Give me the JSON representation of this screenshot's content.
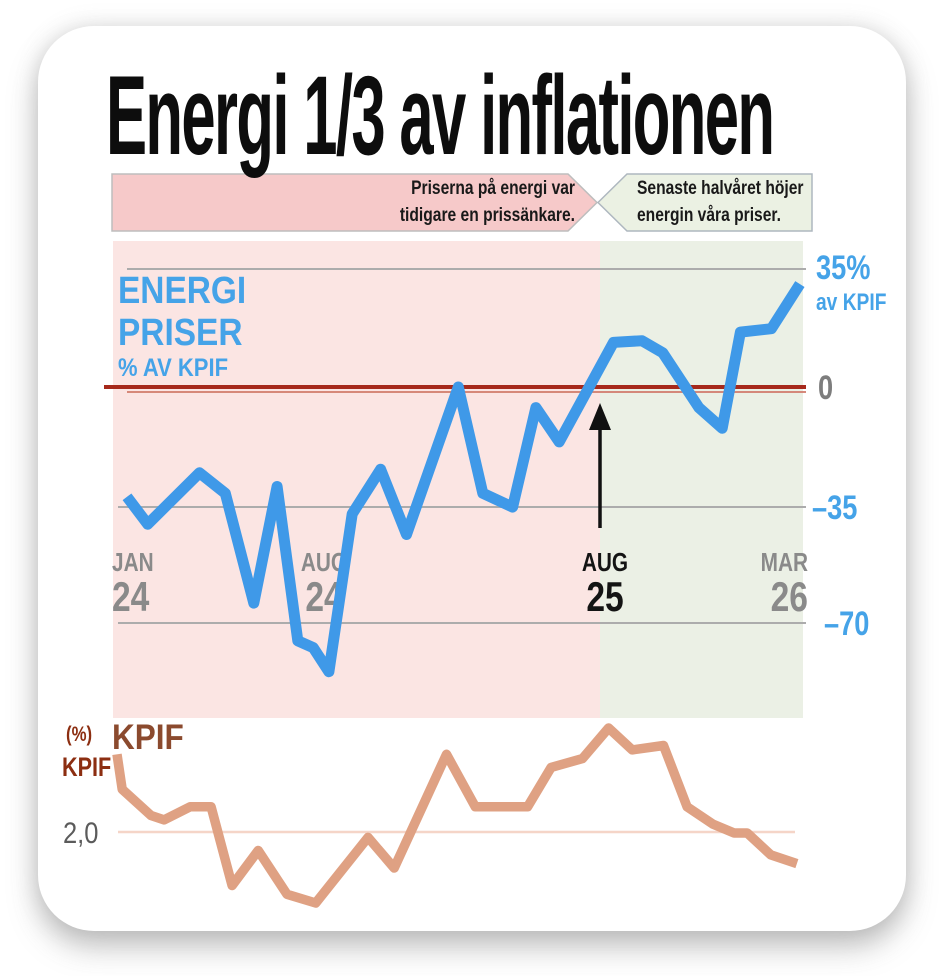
{
  "page": {
    "title": "Energi 1/3 av inflationen"
  },
  "callouts": {
    "past": {
      "line1": "Priserna på energi var",
      "line2": "tidigare en prissänkare.",
      "fill": "#f6c9c9"
    },
    "recent": {
      "line1": "Senaste halvåret höjer",
      "line2": "energin våra priser.",
      "fill": "#ebf1e3"
    }
  },
  "energy_chart": {
    "label": {
      "line1": "ENERGI",
      "line2": "PRISER",
      "line3": "% AV KPIF"
    },
    "y_axis": {
      "top": "35%",
      "top_sub": "av KPIF",
      "zero": "0",
      "m35": "–35",
      "m70": "–70"
    },
    "x_axis": [
      {
        "month": "JAN",
        "year": "24"
      },
      {
        "month": "AUG",
        "year": "24"
      },
      {
        "month": "AUG",
        "year": "25"
      },
      {
        "month": "MAR",
        "year": "26"
      }
    ]
  },
  "kpif_chart": {
    "unit": "(%)",
    "unit_sub": "KPIF",
    "title": "KPIF",
    "tick": "2,0"
  },
  "colors": {
    "blue_line": "#3f99e8",
    "blue_text": "#45a3e8",
    "pink_bg": "#fbe5e3",
    "green_bg": "#ebf0e5",
    "zero_line": "#a6291b",
    "zero_line_light": "#d07a6a",
    "grid": "#acacac",
    "orange_line": "#dfa183",
    "kpif_grid": "#f5d5c8",
    "rust_text": "#8c2e11",
    "sienna_text": "#8b4a2e",
    "gray_label": "#8a8a8a",
    "highlight_label": "#141414"
  },
  "chart_data": [
    {
      "type": "line",
      "title": "Energipriser % av KPIF",
      "x_unit": "months from Jan 2024",
      "x_ticks": [
        "JAN 24",
        "AUG 24",
        "AUG 25",
        "MAR 26"
      ],
      "ylabel": "% av KPIF",
      "ylim": [
        -90,
        40
      ],
      "gridlines": [
        35,
        0,
        -35,
        -70
      ],
      "zero_highlighted": true,
      "regions": [
        {
          "from_month": 0,
          "to_month": 18.3,
          "note": "Priserna på energi var tidigare en prissänkare."
        },
        {
          "from_month": 18.3,
          "to_month": 26.3,
          "note": "Senaste halvåret höjer energin våra priser."
        }
      ],
      "annotation_arrow_at": "AUG 25",
      "points": [
        [
          0,
          -32
        ],
        [
          0.8,
          -40
        ],
        [
          2.8,
          -25
        ],
        [
          3.8,
          -31
        ],
        [
          4.9,
          -63
        ],
        [
          5.8,
          -29
        ],
        [
          6.6,
          -74
        ],
        [
          7.2,
          -76
        ],
        [
          7.8,
          -83
        ],
        [
          8.7,
          -37
        ],
        [
          9.8,
          -24
        ],
        [
          10.8,
          -43
        ],
        [
          12.8,
          0
        ],
        [
          13.75,
          -31
        ],
        [
          14.9,
          -35
        ],
        [
          15.8,
          -6
        ],
        [
          16.7,
          -16
        ],
        [
          18.8,
          13
        ],
        [
          19.9,
          13.5
        ],
        [
          20.7,
          10
        ],
        [
          22.1,
          -6
        ],
        [
          23,
          -12
        ],
        [
          23.7,
          16
        ],
        [
          24.9,
          17
        ],
        [
          26,
          30
        ]
      ]
    },
    {
      "type": "line",
      "title": "KPIF",
      "unit": "%",
      "x_unit": "months from Jan 2024",
      "gridlines": [
        2.0
      ],
      "points": [
        [
          0,
          2.9
        ],
        [
          0.2,
          2.5
        ],
        [
          1.3,
          2.2
        ],
        [
          1.8,
          2.15
        ],
        [
          2.8,
          2.3
        ],
        [
          3.6,
          2.3
        ],
        [
          4.4,
          1.4
        ],
        [
          5.4,
          1.8
        ],
        [
          6.5,
          1.3
        ],
        [
          7.6,
          1.2
        ],
        [
          9.6,
          1.95
        ],
        [
          10.6,
          1.6
        ],
        [
          12.6,
          2.9
        ],
        [
          13.7,
          2.3
        ],
        [
          15.7,
          2.3
        ],
        [
          16.6,
          2.75
        ],
        [
          17.8,
          2.85
        ],
        [
          18.8,
          3.2
        ],
        [
          19.7,
          2.95
        ],
        [
          20.9,
          3.0
        ],
        [
          21.8,
          2.3
        ],
        [
          22.8,
          2.1
        ],
        [
          23.6,
          2.0
        ],
        [
          24.1,
          2.0
        ],
        [
          25,
          1.75
        ],
        [
          26,
          1.65
        ]
      ]
    }
  ]
}
